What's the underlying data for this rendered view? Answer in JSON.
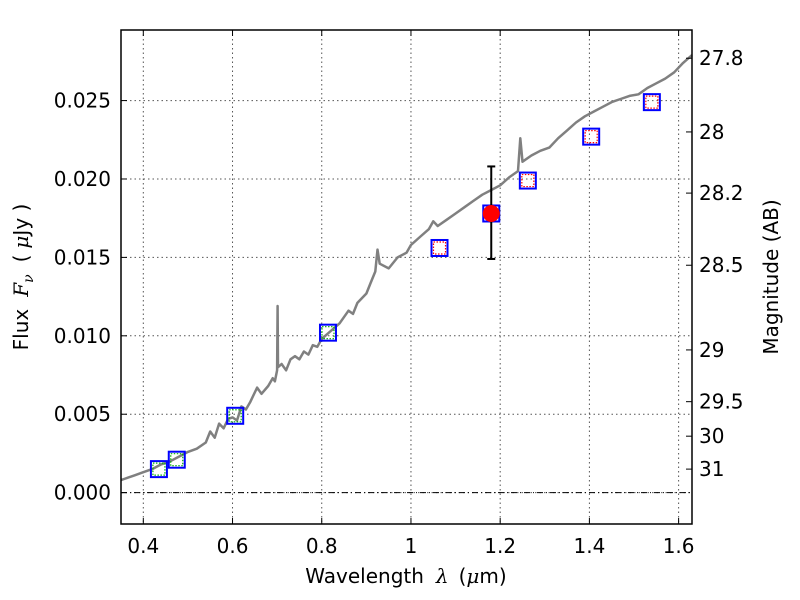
{
  "chart_data": {
    "type": "scatter",
    "x_axis": {
      "label_parts": [
        "Wavelength",
        "λ",
        "(",
        "μ",
        "m)"
      ],
      "lim": [
        0.35,
        1.63
      ],
      "ticks": [
        0.4,
        0.6,
        0.8,
        1.0,
        1.2,
        1.4,
        1.6
      ],
      "tick_labels": [
        "0.4",
        "0.6",
        "0.8",
        "1",
        "1.2",
        "1.4",
        "1.6"
      ]
    },
    "y_axis": {
      "label_parts": [
        "Flux",
        "F",
        "ν",
        "(",
        "μ",
        "Jy )"
      ],
      "lim": [
        -0.002,
        0.0295
      ],
      "ticks": [
        0.0,
        0.005,
        0.01,
        0.015,
        0.02,
        0.025
      ],
      "tick_labels": [
        "0.000",
        "0.005",
        "0.010",
        "0.015",
        "0.020",
        "0.025"
      ]
    },
    "y2_axis": {
      "label": "Magnitude (AB)",
      "ticks": [
        {
          "label": "27.8",
          "flux": 0.0277
        },
        {
          "label": "28",
          "flux": 0.023
        },
        {
          "label": "28.2",
          "flux": 0.0191
        },
        {
          "label": "28.5",
          "flux": 0.0145
        },
        {
          "label": "29",
          "flux": 0.0091
        },
        {
          "label": "29.5",
          "flux": 0.0058
        },
        {
          "label": "30",
          "flux": 0.0036
        },
        {
          "label": "31",
          "flux": 0.0015
        }
      ]
    },
    "grid": true,
    "zero_line": true,
    "series": [
      {
        "name": "SED model",
        "kind": "line",
        "color": "#808080",
        "points": [
          [
            0.35,
            0.0008
          ],
          [
            0.36,
            0.0009
          ],
          [
            0.38,
            0.0011
          ],
          [
            0.4,
            0.0013
          ],
          [
            0.42,
            0.0015
          ],
          [
            0.44,
            0.0018
          ],
          [
            0.46,
            0.002
          ],
          [
            0.48,
            0.0023
          ],
          [
            0.5,
            0.0026
          ],
          [
            0.52,
            0.0028
          ],
          [
            0.54,
            0.0032
          ],
          [
            0.55,
            0.0039
          ],
          [
            0.56,
            0.0035
          ],
          [
            0.57,
            0.0044
          ],
          [
            0.58,
            0.0041
          ],
          [
            0.59,
            0.0047
          ],
          [
            0.6,
            0.0048
          ],
          [
            0.61,
            0.0046
          ],
          [
            0.62,
            0.0055
          ],
          [
            0.63,
            0.0053
          ],
          [
            0.64,
            0.0058
          ],
          [
            0.655,
            0.0067
          ],
          [
            0.665,
            0.0063
          ],
          [
            0.68,
            0.0068
          ],
          [
            0.69,
            0.0073
          ],
          [
            0.695,
            0.0071
          ],
          [
            0.7,
            0.0078
          ],
          [
            0.701,
            0.0119
          ],
          [
            0.702,
            0.008
          ],
          [
            0.71,
            0.0082
          ],
          [
            0.72,
            0.0078
          ],
          [
            0.73,
            0.0085
          ],
          [
            0.74,
            0.0087
          ],
          [
            0.75,
            0.0085
          ],
          [
            0.76,
            0.009
          ],
          [
            0.77,
            0.0088
          ],
          [
            0.78,
            0.0094
          ],
          [
            0.79,
            0.0093
          ],
          [
            0.8,
            0.0098
          ],
          [
            0.82,
            0.0103
          ],
          [
            0.84,
            0.0108
          ],
          [
            0.86,
            0.0116
          ],
          [
            0.87,
            0.0114
          ],
          [
            0.88,
            0.0121
          ],
          [
            0.9,
            0.0127
          ],
          [
            0.91,
            0.0134
          ],
          [
            0.92,
            0.0141
          ],
          [
            0.925,
            0.0155
          ],
          [
            0.93,
            0.0146
          ],
          [
            0.95,
            0.0143
          ],
          [
            0.97,
            0.015
          ],
          [
            0.99,
            0.0153
          ],
          [
            1.0,
            0.0158
          ],
          [
            1.02,
            0.0163
          ],
          [
            1.04,
            0.0168
          ],
          [
            1.05,
            0.0173
          ],
          [
            1.06,
            0.017
          ],
          [
            1.08,
            0.0174
          ],
          [
            1.1,
            0.0178
          ],
          [
            1.12,
            0.0182
          ],
          [
            1.14,
            0.0186
          ],
          [
            1.16,
            0.019
          ],
          [
            1.18,
            0.0193
          ],
          [
            1.2,
            0.0196
          ],
          [
            1.22,
            0.0201
          ],
          [
            1.24,
            0.0205
          ],
          [
            1.245,
            0.0226
          ],
          [
            1.25,
            0.0211
          ],
          [
            1.27,
            0.0215
          ],
          [
            1.29,
            0.0218
          ],
          [
            1.31,
            0.022
          ],
          [
            1.33,
            0.0226
          ],
          [
            1.35,
            0.0231
          ],
          [
            1.37,
            0.0236
          ],
          [
            1.39,
            0.024
          ],
          [
            1.41,
            0.0243
          ],
          [
            1.43,
            0.0246
          ],
          [
            1.45,
            0.0249
          ],
          [
            1.47,
            0.0251
          ],
          [
            1.49,
            0.0253
          ],
          [
            1.51,
            0.0254
          ],
          [
            1.53,
            0.0258
          ],
          [
            1.55,
            0.0261
          ],
          [
            1.57,
            0.0264
          ],
          [
            1.59,
            0.0268
          ],
          [
            1.61,
            0.0274
          ],
          [
            1.63,
            0.0279
          ]
        ]
      },
      {
        "name": "Band flux (blue)",
        "kind": "square",
        "color": "#0000ff",
        "points": [
          [
            0.435,
            0.0015
          ],
          [
            0.475,
            0.0021
          ],
          [
            0.606,
            0.0049
          ],
          [
            0.814,
            0.0102
          ],
          [
            1.064,
            0.0156
          ],
          [
            1.18,
            0.0178
          ],
          [
            1.262,
            0.0199
          ],
          [
            1.404,
            0.0227
          ],
          [
            1.54,
            0.0249
          ]
        ]
      },
      {
        "name": "Model flux (green)",
        "kind": "square",
        "color": "#00b000",
        "points": [
          [
            0.435,
            0.0015
          ],
          [
            0.475,
            0.0021
          ],
          [
            0.606,
            0.0049
          ],
          [
            0.814,
            0.0102
          ]
        ]
      },
      {
        "name": "Model flux (red)",
        "kind": "square",
        "color": "#ff0000",
        "points": [
          [
            1.064,
            0.0156
          ],
          [
            1.262,
            0.0199
          ],
          [
            1.404,
            0.0227
          ],
          [
            1.54,
            0.0249
          ]
        ]
      },
      {
        "name": "Measured flux",
        "kind": "circle-errorbar",
        "color": "#ff0000",
        "points": [
          [
            1.18,
            0.0178,
            0.0149,
            0.0208
          ]
        ]
      }
    ]
  }
}
